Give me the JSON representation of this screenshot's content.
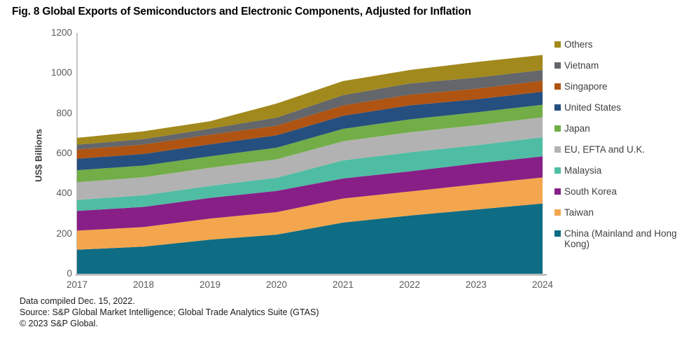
{
  "title": "Fig. 8 Global Exports of Semiconductors and Electronic Components, Adjusted for Inflation",
  "footer": {
    "line1": "Data compiled Dec. 15, 2022.",
    "line2": "Source: S&P Global Market Intelligence; Global Trade Analytics Suite (GTAS)",
    "line3": "© 2023 S&P Global."
  },
  "chart_data": {
    "type": "area",
    "stacked": true,
    "title": "Fig. 8 Global Exports of Semiconductors and Electronic Components, Adjusted for Inflation",
    "xlabel": "",
    "ylabel": "US$ Billions",
    "ylim": [
      0,
      1200
    ],
    "ytick_step": 200,
    "grid": false,
    "legend_position": "right",
    "legend_order": "top-to-bottom is reverse of stacking order",
    "categories": [
      "2017",
      "2018",
      "2019",
      "2020",
      "2021",
      "2022",
      "2023",
      "2024"
    ],
    "series": [
      {
        "id": "china-mainland-and-hong-kong",
        "name": "China (Mainland and Hong Kong)",
        "color": "#0e6c84",
        "values": [
          120,
          135,
          170,
          195,
          255,
          290,
          320,
          350
        ]
      },
      {
        "id": "taiwan",
        "name": "Taiwan",
        "color": "#f3a64d",
        "values": [
          95,
          98,
          105,
          112,
          120,
          120,
          125,
          130
        ]
      },
      {
        "id": "south-korea",
        "name": "South Korea",
        "color": "#871f87",
        "values": [
          98,
          100,
          103,
          106,
          100,
          100,
          105,
          105
        ]
      },
      {
        "id": "malaysia",
        "name": "Malaysia",
        "color": "#4fbda3",
        "values": [
          55,
          58,
          60,
          65,
          90,
          95,
          90,
          95
        ]
      },
      {
        "id": "eu-efta-uk",
        "name": "EU, EFTA and U.K.",
        "color": "#b2b2b2",
        "values": [
          88,
          90,
          90,
          92,
          95,
          100,
          100,
          100
        ]
      },
      {
        "id": "japan",
        "name": "Japan",
        "color": "#72ad47",
        "values": [
          60,
          58,
          57,
          58,
          62,
          64,
          64,
          62
        ]
      },
      {
        "id": "united-states",
        "name": "United States",
        "color": "#254f7f",
        "values": [
          57,
          58,
          60,
          62,
          65,
          70,
          65,
          65
        ]
      },
      {
        "id": "singapore",
        "name": "Singapore",
        "color": "#af5413",
        "values": [
          46,
          47,
          48,
          48,
          52,
          53,
          53,
          55
        ]
      },
      {
        "id": "vietnam",
        "name": "Vietnam",
        "color": "#63666a",
        "values": [
          24,
          27,
          30,
          40,
          51,
          56,
          55,
          53
        ]
      },
      {
        "id": "others",
        "name": "Others",
        "color": "#a1891d",
        "values": [
          34,
          39,
          37,
          70,
          70,
          67,
          78,
          75
        ]
      }
    ],
    "axis_color": "#a6a6a6",
    "tick_label_color": "#595959"
  }
}
